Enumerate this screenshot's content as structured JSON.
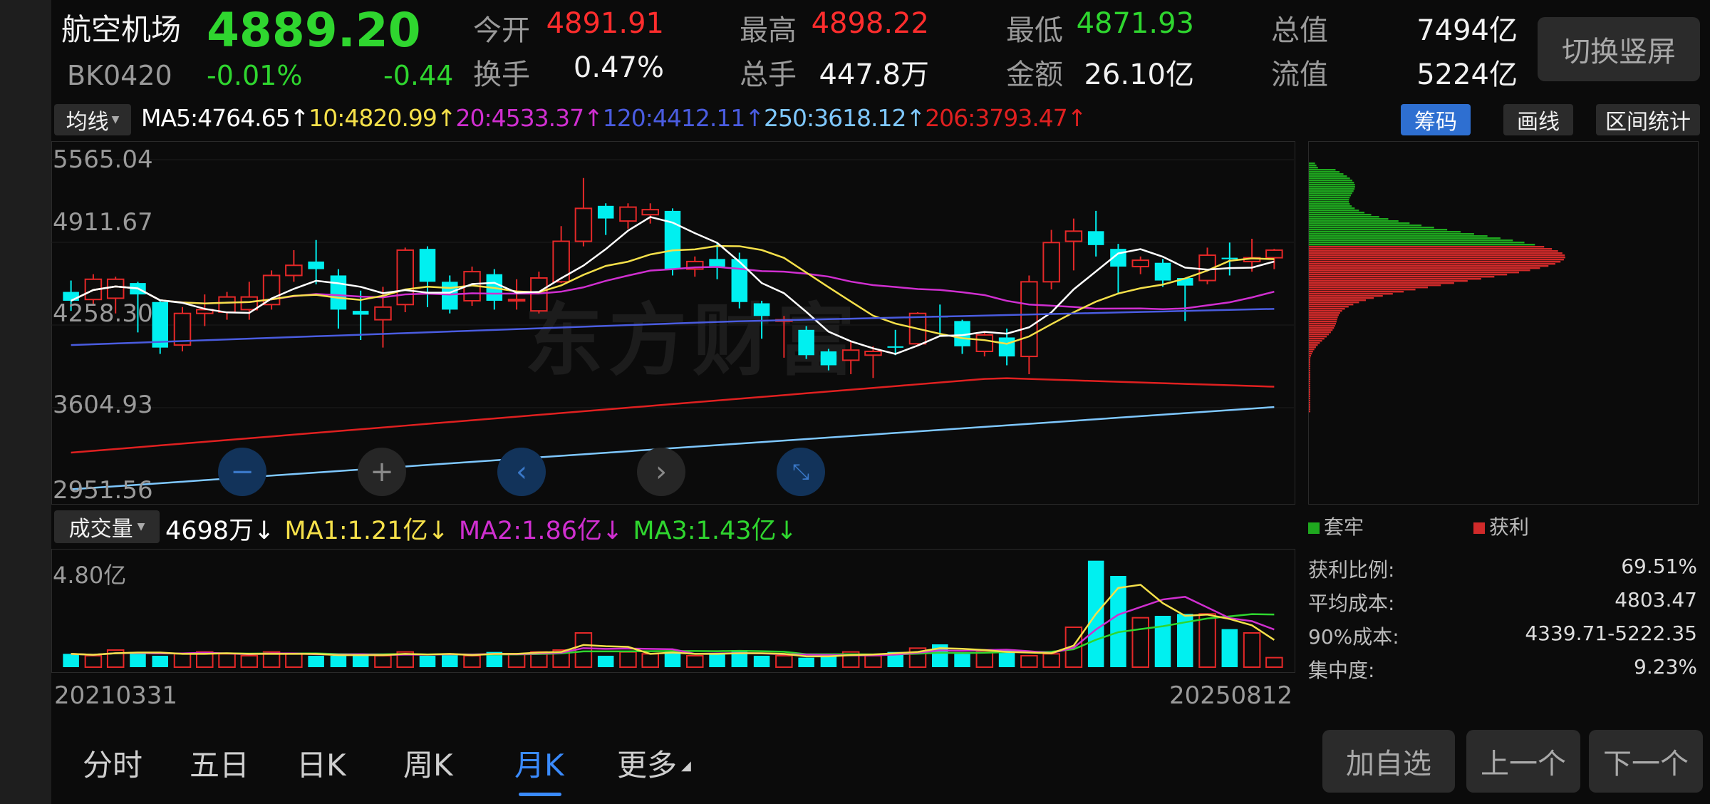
{
  "header": {
    "name": "航空机场",
    "price": "4889.20",
    "code": "BK0420",
    "change_pct": "-0.01%",
    "change": "-0.44",
    "switch_button": "切换竖屏",
    "stats": [
      {
        "label": "今开",
        "value": "4891.91",
        "color": "#ff2d2d"
      },
      {
        "label": "最高",
        "value": "4898.22",
        "color": "#ff2d2d"
      },
      {
        "label": "最低",
        "value": "4871.93",
        "color": "#2fd62f"
      },
      {
        "label": "总值",
        "value": "7494亿",
        "color": "#f2f2f2"
      },
      {
        "label": "换手",
        "value": "0.47%",
        "color": "#f2f2f2"
      },
      {
        "label": "总手",
        "value": "447.8万",
        "color": "#f2f2f2"
      },
      {
        "label": "金额",
        "value": "26.10亿",
        "color": "#f2f2f2"
      },
      {
        "label": "流值",
        "value": "5224亿",
        "color": "#f2f2f2"
      }
    ]
  },
  "ma_bar": {
    "selector": "均线",
    "items": [
      {
        "text": "MA5:4764.65↑",
        "color": "#ffffff"
      },
      {
        "text": "10:4820.99↑",
        "color": "#f5e04a"
      },
      {
        "text": "20:4533.37↑",
        "color": "#d02fd0"
      },
      {
        "text": "120:4412.11↑",
        "color": "#4a5ce0"
      },
      {
        "text": "250:3618.12↑",
        "color": "#7fc8ff"
      },
      {
        "text": "206:3793.47↑",
        "color": "#e02020"
      }
    ],
    "tabs": [
      "筹码",
      "画线",
      "区间统计"
    ],
    "active_tab": "筹码"
  },
  "price_axis": [
    "5565.04",
    "4911.67",
    "4258.30",
    "3604.93",
    "2951.56"
  ],
  "watermark": "东方财富",
  "volume_bar": {
    "selector": "成交量",
    "items": [
      {
        "text": "4698万↓",
        "color": "#ffffff"
      },
      {
        "text": "MA1:1.21亿↓",
        "color": "#f5e04a"
      },
      {
        "text": "MA2:1.86亿↓",
        "color": "#d02fd0"
      },
      {
        "text": "MA3:1.43亿↓",
        "color": "#2fd62f"
      }
    ],
    "axis_top": "4.80亿"
  },
  "dates": {
    "start": "20210331",
    "end": "20250812"
  },
  "chips": {
    "legend_trapped": "套牢",
    "legend_profit": "获利",
    "rows": [
      {
        "label": "获利比例:",
        "value": "69.51%"
      },
      {
        "label": "平均成本:",
        "value": "4803.47"
      },
      {
        "label": "90%成本:",
        "value": "4339.71-5222.35"
      },
      {
        "label": "集中度:",
        "value": "9.23%"
      }
    ]
  },
  "bottom_tabs": [
    "分时",
    "五日",
    "日K",
    "周K",
    "月K",
    "更多"
  ],
  "active_bottom_tab": "月K",
  "bottom_buttons": [
    "加自选",
    "上一个",
    "下一个"
  ],
  "chart_data": {
    "type": "candlestick",
    "ylim": [
      2951.56,
      5565.04
    ],
    "candles": [
      [
        4520,
        4450,
        4610,
        4370
      ],
      [
        4460,
        4620,
        4660,
        4420
      ],
      [
        4470,
        4620,
        4640,
        4350
      ],
      [
        4590,
        4500,
        4600,
        4200
      ],
      [
        4440,
        4080,
        4450,
        4030
      ],
      [
        4100,
        4350,
        4400,
        4050
      ],
      [
        4350,
        4380,
        4500,
        4250
      ],
      [
        4360,
        4480,
        4520,
        4300
      ],
      [
        4380,
        4480,
        4600,
        4300
      ],
      [
        4420,
        4650,
        4690,
        4380
      ],
      [
        4650,
        4730,
        4850,
        4600
      ],
      [
        4760,
        4700,
        4930,
        4580
      ],
      [
        4650,
        4380,
        4700,
        4230
      ],
      [
        4370,
        4340,
        4530,
        4140
      ],
      [
        4300,
        4400,
        4560,
        4080
      ],
      [
        4420,
        4850,
        4870,
        4360
      ],
      [
        4860,
        4600,
        4880,
        4400
      ],
      [
        4600,
        4380,
        4650,
        4350
      ],
      [
        4450,
        4680,
        4720,
        4410
      ],
      [
        4660,
        4450,
        4700,
        4380
      ],
      [
        4450,
        4460,
        4620,
        4380
      ],
      [
        4370,
        4630,
        4680,
        4350
      ],
      [
        4600,
        4920,
        5040,
        4590
      ],
      [
        4920,
        5180,
        5420,
        4880
      ],
      [
        5200,
        5100,
        5220,
        4970
      ],
      [
        5080,
        5190,
        5220,
        5020
      ],
      [
        5130,
        5170,
        5220,
        5060
      ],
      [
        5160,
        4700,
        5180,
        4650
      ],
      [
        4700,
        4760,
        4800,
        4640
      ],
      [
        4780,
        4720,
        4910,
        4620
      ],
      [
        4780,
        4440,
        4830,
        4390
      ],
      [
        4430,
        4330,
        4450,
        4150
      ],
      [
        4300,
        4300,
        4330,
        4000
      ],
      [
        4220,
        4020,
        4250,
        3990
      ],
      [
        4050,
        3940,
        4070,
        3900
      ],
      [
        3980,
        4060,
        4130,
        3870
      ],
      [
        4020,
        4050,
        4090,
        3840
      ],
      [
        4090,
        4080,
        4220,
        4020
      ],
      [
        4110,
        4350,
        4360,
        4100
      ],
      [
        4330,
        4320,
        4420,
        4170
      ],
      [
        4290,
        4090,
        4300,
        4030
      ],
      [
        4050,
        4180,
        4200,
        4010
      ],
      [
        4160,
        4010,
        4230,
        3940
      ],
      [
        4010,
        4600,
        4650,
        3870
      ],
      [
        4600,
        4910,
        5010,
        4540
      ],
      [
        4920,
        5000,
        5100,
        4690
      ],
      [
        5000,
        4890,
        5160,
        4800
      ],
      [
        4860,
        4720,
        4900,
        4500
      ],
      [
        4720,
        4770,
        4800,
        4660
      ],
      [
        4750,
        4610,
        4780,
        4560
      ],
      [
        4630,
        4570,
        4610,
        4290
      ],
      [
        4610,
        4810,
        4870,
        4580
      ],
      [
        4790,
        4780,
        4910,
        4650
      ],
      [
        4760,
        4790,
        4940,
        4680
      ],
      [
        4790,
        4850,
        4860,
        4700
      ]
    ]
  }
}
